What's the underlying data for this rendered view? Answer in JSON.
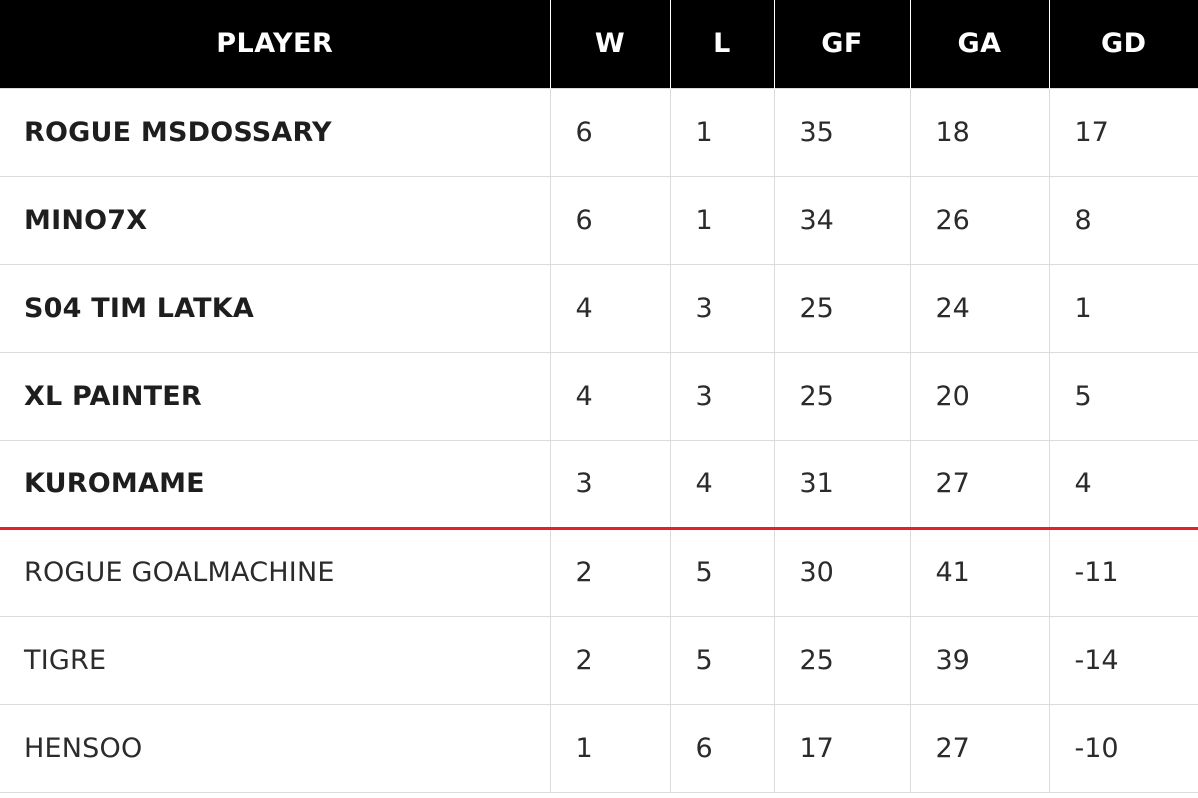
{
  "table": {
    "headers": {
      "player": "PLAYER",
      "w": "W",
      "l": "L",
      "gf": "GF",
      "ga": "GA",
      "gd": "GD"
    },
    "cutoff_color": "#e3202b",
    "rows": [
      {
        "player": "ROGUE MSDOSSARY",
        "w": "6",
        "l": "1",
        "gf": "35",
        "ga": "18",
        "gd": "17"
      },
      {
        "player": "MINO7X",
        "w": "6",
        "l": "1",
        "gf": "34",
        "ga": "26",
        "gd": "8"
      },
      {
        "player": "S04 TIM LATKA",
        "w": "4",
        "l": "3",
        "gf": "25",
        "ga": "24",
        "gd": "1"
      },
      {
        "player": "XL PAINTER",
        "w": "4",
        "l": "3",
        "gf": "25",
        "ga": "20",
        "gd": "5"
      },
      {
        "player": "KUROMAME",
        "w": "3",
        "l": "4",
        "gf": "31",
        "ga": "27",
        "gd": "4"
      },
      {
        "player": "ROGUE GOALMACHINE",
        "w": "2",
        "l": "5",
        "gf": "30",
        "ga": "41",
        "gd": "-11"
      },
      {
        "player": "TIGRE",
        "w": "2",
        "l": "5",
        "gf": "25",
        "ga": "39",
        "gd": "-14"
      },
      {
        "player": "HENSOO",
        "w": "1",
        "l": "6",
        "gf": "17",
        "ga": "27",
        "gd": "-10"
      }
    ]
  }
}
